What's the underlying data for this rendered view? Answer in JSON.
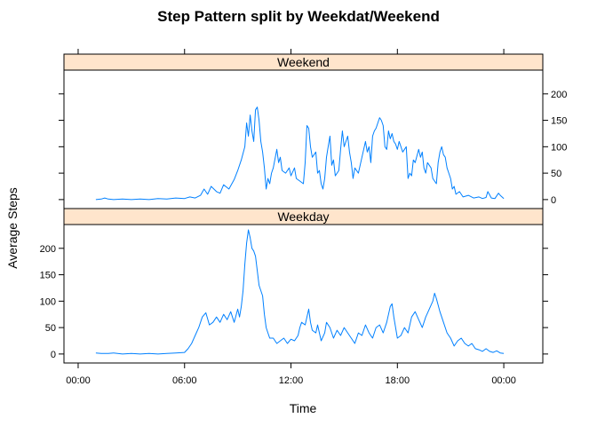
{
  "chart_data": {
    "type": "line",
    "title": "Step Pattern split by Weekdat/Weekend",
    "xlabel": "Time",
    "ylabel": "Average Steps",
    "x_tick_labels": [
      "00:00",
      "06:00",
      "12:00",
      "18:00",
      "00:00"
    ],
    "x_tick_hours": [
      0,
      6,
      12,
      18,
      24
    ],
    "xlim_hours": [
      -0.8,
      26.2
    ],
    "ylim": [
      -17,
      245
    ],
    "y_ticks": [
      0,
      50,
      100,
      150,
      200
    ],
    "line_color": "#0080ff",
    "strip_color": "#ffe5cc",
    "panels": [
      {
        "name": "Weekend",
        "points": [
          [
            1.0,
            0
          ],
          [
            1.3,
            1
          ],
          [
            1.5,
            3
          ],
          [
            1.7,
            1
          ],
          [
            2.0,
            0
          ],
          [
            2.5,
            1
          ],
          [
            3.0,
            0
          ],
          [
            3.5,
            1
          ],
          [
            4.0,
            0
          ],
          [
            4.5,
            2
          ],
          [
            5.0,
            1
          ],
          [
            5.5,
            3
          ],
          [
            6.0,
            2
          ],
          [
            6.3,
            5
          ],
          [
            6.6,
            3
          ],
          [
            6.9,
            8
          ],
          [
            7.1,
            20
          ],
          [
            7.3,
            10
          ],
          [
            7.5,
            25
          ],
          [
            7.8,
            15
          ],
          [
            8.0,
            12
          ],
          [
            8.2,
            28
          ],
          [
            8.5,
            20
          ],
          [
            8.8,
            38
          ],
          [
            9.0,
            55
          ],
          [
            9.2,
            75
          ],
          [
            9.4,
            100
          ],
          [
            9.5,
            145
          ],
          [
            9.6,
            120
          ],
          [
            9.7,
            160
          ],
          [
            9.8,
            130
          ],
          [
            9.9,
            110
          ],
          [
            10.0,
            170
          ],
          [
            10.1,
            175
          ],
          [
            10.2,
            150
          ],
          [
            10.3,
            110
          ],
          [
            10.4,
            90
          ],
          [
            10.5,
            60
          ],
          [
            10.6,
            20
          ],
          [
            10.7,
            40
          ],
          [
            10.8,
            30
          ],
          [
            10.9,
            50
          ],
          [
            11.0,
            60
          ],
          [
            11.2,
            95
          ],
          [
            11.3,
            70
          ],
          [
            11.4,
            80
          ],
          [
            11.5,
            55
          ],
          [
            11.7,
            50
          ],
          [
            11.9,
            60
          ],
          [
            12.0,
            45
          ],
          [
            12.2,
            60
          ],
          [
            12.3,
            40
          ],
          [
            12.5,
            35
          ],
          [
            12.7,
            30
          ],
          [
            12.8,
            70
          ],
          [
            12.9,
            140
          ],
          [
            13.0,
            135
          ],
          [
            13.1,
            100
          ],
          [
            13.2,
            80
          ],
          [
            13.4,
            90
          ],
          [
            13.5,
            50
          ],
          [
            13.6,
            55
          ],
          [
            13.7,
            30
          ],
          [
            13.8,
            20
          ],
          [
            13.9,
            40
          ],
          [
            14.0,
            80
          ],
          [
            14.1,
            100
          ],
          [
            14.2,
            120
          ],
          [
            14.3,
            65
          ],
          [
            14.4,
            75
          ],
          [
            14.5,
            45
          ],
          [
            14.7,
            55
          ],
          [
            14.8,
            95
          ],
          [
            14.9,
            130
          ],
          [
            15.0,
            100
          ],
          [
            15.2,
            120
          ],
          [
            15.3,
            90
          ],
          [
            15.4,
            70
          ],
          [
            15.5,
            40
          ],
          [
            15.6,
            60
          ],
          [
            15.8,
            50
          ],
          [
            16.0,
            80
          ],
          [
            16.1,
            95
          ],
          [
            16.2,
            110
          ],
          [
            16.3,
            90
          ],
          [
            16.4,
            100
          ],
          [
            16.5,
            70
          ],
          [
            16.6,
            120
          ],
          [
            16.7,
            130
          ],
          [
            16.8,
            135
          ],
          [
            16.9,
            145
          ],
          [
            17.0,
            155
          ],
          [
            17.1,
            150
          ],
          [
            17.2,
            140
          ],
          [
            17.3,
            100
          ],
          [
            17.4,
            95
          ],
          [
            17.5,
            130
          ],
          [
            17.6,
            115
          ],
          [
            17.7,
            125
          ],
          [
            17.8,
            110
          ],
          [
            17.9,
            105
          ],
          [
            18.0,
            95
          ],
          [
            18.1,
            110
          ],
          [
            18.3,
            90
          ],
          [
            18.5,
            100
          ],
          [
            18.6,
            40
          ],
          [
            18.7,
            50
          ],
          [
            18.8,
            45
          ],
          [
            18.9,
            75
          ],
          [
            19.0,
            70
          ],
          [
            19.2,
            95
          ],
          [
            19.3,
            80
          ],
          [
            19.4,
            90
          ],
          [
            19.5,
            60
          ],
          [
            19.6,
            50
          ],
          [
            19.7,
            70
          ],
          [
            19.9,
            60
          ],
          [
            20.0,
            40
          ],
          [
            20.2,
            30
          ],
          [
            20.3,
            70
          ],
          [
            20.4,
            90
          ],
          [
            20.5,
            100
          ],
          [
            20.6,
            85
          ],
          [
            20.7,
            80
          ],
          [
            20.8,
            60
          ],
          [
            20.9,
            50
          ],
          [
            21.0,
            40
          ],
          [
            21.1,
            20
          ],
          [
            21.2,
            25
          ],
          [
            21.3,
            10
          ],
          [
            21.5,
            15
          ],
          [
            21.7,
            5
          ],
          [
            22.0,
            8
          ],
          [
            22.3,
            3
          ],
          [
            22.6,
            5
          ],
          [
            22.8,
            2
          ],
          [
            23.0,
            4
          ],
          [
            23.1,
            15
          ],
          [
            23.3,
            3
          ],
          [
            23.5,
            2
          ],
          [
            23.7,
            12
          ],
          [
            23.8,
            8
          ],
          [
            24.0,
            2
          ]
        ]
      },
      {
        "name": "Weekday",
        "points": [
          [
            1.0,
            2
          ],
          [
            1.3,
            1
          ],
          [
            1.7,
            1
          ],
          [
            2.0,
            2
          ],
          [
            2.5,
            0
          ],
          [
            3.0,
            1
          ],
          [
            3.5,
            0
          ],
          [
            4.0,
            1
          ],
          [
            4.5,
            0
          ],
          [
            5.0,
            1
          ],
          [
            5.5,
            2
          ],
          [
            6.0,
            3
          ],
          [
            6.2,
            10
          ],
          [
            6.4,
            20
          ],
          [
            6.6,
            35
          ],
          [
            6.8,
            50
          ],
          [
            7.0,
            70
          ],
          [
            7.2,
            78
          ],
          [
            7.4,
            55
          ],
          [
            7.6,
            60
          ],
          [
            7.8,
            70
          ],
          [
            8.0,
            60
          ],
          [
            8.2,
            75
          ],
          [
            8.4,
            65
          ],
          [
            8.6,
            80
          ],
          [
            8.8,
            60
          ],
          [
            9.0,
            85
          ],
          [
            9.1,
            70
          ],
          [
            9.2,
            90
          ],
          [
            9.3,
            120
          ],
          [
            9.4,
            170
          ],
          [
            9.5,
            210
          ],
          [
            9.6,
            235
          ],
          [
            9.7,
            220
          ],
          [
            9.8,
            200
          ],
          [
            9.9,
            195
          ],
          [
            10.0,
            185
          ],
          [
            10.2,
            130
          ],
          [
            10.4,
            110
          ],
          [
            10.5,
            75
          ],
          [
            10.6,
            50
          ],
          [
            10.7,
            40
          ],
          [
            10.8,
            30
          ],
          [
            11.0,
            30
          ],
          [
            11.2,
            20
          ],
          [
            11.4,
            25
          ],
          [
            11.6,
            30
          ],
          [
            11.8,
            20
          ],
          [
            12.0,
            28
          ],
          [
            12.2,
            25
          ],
          [
            12.4,
            35
          ],
          [
            12.5,
            50
          ],
          [
            12.6,
            60
          ],
          [
            12.8,
            55
          ],
          [
            13.0,
            85
          ],
          [
            13.1,
            60
          ],
          [
            13.2,
            45
          ],
          [
            13.4,
            40
          ],
          [
            13.5,
            55
          ],
          [
            13.7,
            25
          ],
          [
            13.9,
            40
          ],
          [
            14.0,
            60
          ],
          [
            14.2,
            50
          ],
          [
            14.4,
            30
          ],
          [
            14.6,
            45
          ],
          [
            14.8,
            35
          ],
          [
            15.0,
            50
          ],
          [
            15.2,
            40
          ],
          [
            15.4,
            30
          ],
          [
            15.6,
            20
          ],
          [
            15.8,
            40
          ],
          [
            16.0,
            35
          ],
          [
            16.2,
            55
          ],
          [
            16.4,
            40
          ],
          [
            16.6,
            30
          ],
          [
            16.8,
            50
          ],
          [
            17.0,
            55
          ],
          [
            17.2,
            40
          ],
          [
            17.4,
            60
          ],
          [
            17.6,
            90
          ],
          [
            17.7,
            95
          ],
          [
            17.8,
            70
          ],
          [
            18.0,
            30
          ],
          [
            18.2,
            35
          ],
          [
            18.4,
            50
          ],
          [
            18.6,
            40
          ],
          [
            18.8,
            70
          ],
          [
            19.0,
            80
          ],
          [
            19.2,
            65
          ],
          [
            19.4,
            50
          ],
          [
            19.6,
            70
          ],
          [
            19.8,
            85
          ],
          [
            20.0,
            100
          ],
          [
            20.1,
            115
          ],
          [
            20.2,
            105
          ],
          [
            20.4,
            80
          ],
          [
            20.6,
            60
          ],
          [
            20.8,
            40
          ],
          [
            21.0,
            30
          ],
          [
            21.2,
            15
          ],
          [
            21.4,
            25
          ],
          [
            21.6,
            30
          ],
          [
            21.8,
            20
          ],
          [
            22.0,
            15
          ],
          [
            22.2,
            20
          ],
          [
            22.4,
            10
          ],
          [
            22.6,
            8
          ],
          [
            22.8,
            5
          ],
          [
            23.0,
            10
          ],
          [
            23.2,
            5
          ],
          [
            23.4,
            3
          ],
          [
            23.6,
            6
          ],
          [
            23.8,
            2
          ],
          [
            24.0,
            1
          ]
        ]
      }
    ]
  }
}
